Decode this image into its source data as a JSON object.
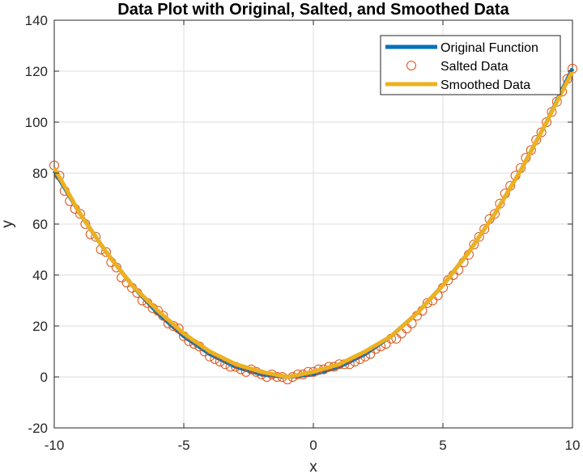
{
  "chart_data": {
    "type": "line",
    "title": "Data Plot with Original, Salted, and Smoothed Data",
    "xlabel": "x",
    "ylabel": "y",
    "xlim": [
      -10,
      10
    ],
    "ylim": [
      -20,
      140
    ],
    "x_ticks": [
      -10,
      -5,
      0,
      5,
      10
    ],
    "y_ticks": [
      -20,
      0,
      20,
      40,
      60,
      80,
      100,
      120,
      140
    ],
    "grid": true,
    "legend_position": "top-right",
    "series": [
      {
        "name": "Original Function",
        "style": "line",
        "color": "#0072BD",
        "x": [
          -10,
          -9,
          -8,
          -7,
          -6,
          -5,
          -4,
          -3,
          -2,
          -1,
          0,
          1,
          2,
          3,
          4,
          5,
          6,
          7,
          8,
          9,
          10
        ],
        "y": [
          81,
          64,
          49,
          36,
          25,
          16,
          9,
          4,
          1,
          0,
          1,
          4,
          9,
          16,
          25,
          36,
          49,
          64,
          81,
          100,
          121
        ]
      },
      {
        "name": "Salted Data",
        "style": "markers",
        "color": "#D95319",
        "x": [
          -10,
          -9.8,
          -9.6,
          -9.4,
          -9.2,
          -9,
          -8.8,
          -8.6,
          -8.4,
          -8.2,
          -8,
          -7.8,
          -7.6,
          -7.4,
          -7.2,
          -7,
          -6.8,
          -6.6,
          -6.4,
          -6.2,
          -6,
          -5.8,
          -5.6,
          -5.4,
          -5.2,
          -5,
          -4.8,
          -4.6,
          -4.4,
          -4.2,
          -4,
          -3.8,
          -3.6,
          -3.4,
          -3.2,
          -3,
          -2.8,
          -2.6,
          -2.4,
          -2.2,
          -2,
          -1.8,
          -1.6,
          -1.4,
          -1.2,
          -1,
          -0.8,
          -0.6,
          -0.4,
          -0.2,
          0,
          0.2,
          0.4,
          0.6,
          0.8,
          1,
          1.2,
          1.4,
          1.6,
          1.8,
          2,
          2.2,
          2.4,
          2.6,
          2.8,
          3,
          3.2,
          3.4,
          3.6,
          3.8,
          4,
          4.2,
          4.4,
          4.6,
          4.8,
          5,
          5.2,
          5.4,
          5.6,
          5.8,
          6,
          6.2,
          6.4,
          6.6,
          6.8,
          7,
          7.2,
          7.4,
          7.6,
          7.8,
          8,
          8.2,
          8.4,
          8.6,
          8.8,
          9,
          9.2,
          9.4,
          9.6,
          9.8,
          10
        ],
        "y": [
          83,
          79,
          73,
          69,
          66,
          64,
          60,
          56,
          55,
          50,
          49,
          45,
          43,
          39,
          37,
          35,
          33,
          30,
          29,
          27,
          26,
          24,
          21,
          20,
          19,
          16,
          14,
          13,
          12,
          10,
          8,
          7,
          6,
          5,
          4,
          4,
          3,
          2,
          3,
          2,
          1,
          0,
          1,
          0,
          0,
          -1,
          0,
          1,
          1,
          2,
          2,
          3,
          3,
          4,
          4,
          5,
          5,
          5,
          6,
          7,
          8,
          9,
          11,
          12,
          13,
          15,
          15,
          17,
          19,
          21,
          24,
          26,
          29,
          30,
          32,
          35,
          38,
          40,
          42,
          45,
          48,
          52,
          55,
          58,
          62,
          64,
          68,
          72,
          75,
          79,
          82,
          86,
          89,
          93,
          96,
          100,
          104,
          108,
          112,
          117,
          121
        ]
      },
      {
        "name": "Smoothed Data",
        "style": "line",
        "color": "#EDB120",
        "x": [
          -10,
          -9,
          -8,
          -7,
          -6,
          -5,
          -4,
          -3,
          -2,
          -1,
          0,
          1,
          2,
          3,
          4,
          5,
          6,
          7,
          8,
          9,
          10
        ],
        "y": [
          82,
          64,
          49,
          36,
          26,
          17,
          10,
          5,
          2,
          0,
          2,
          5,
          10,
          16,
          25,
          36,
          49,
          64,
          81,
          100,
          120
        ]
      }
    ]
  }
}
